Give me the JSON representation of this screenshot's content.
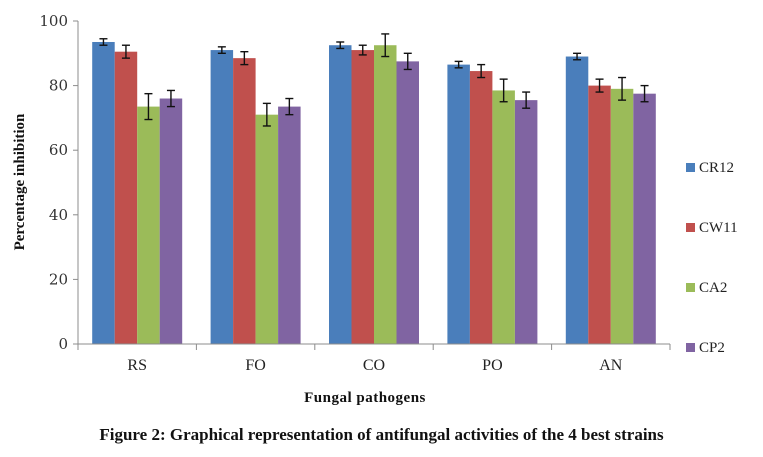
{
  "chart_data": {
    "type": "bar",
    "title": "",
    "xlabel": "Fungal pathogens",
    "ylabel": "Percentage inhibition",
    "ylim": [
      0,
      100
    ],
    "yticks": [
      0,
      20,
      40,
      60,
      80,
      100
    ],
    "grid": false,
    "legend_position": "right",
    "categories": [
      "RS",
      "FO",
      "CO",
      "PO",
      "AN"
    ],
    "series": [
      {
        "name": "CR12",
        "color": "#4a7ebb",
        "values": [
          93.5,
          91.0,
          92.5,
          86.5,
          89.0
        ],
        "errors": [
          1.0,
          1.0,
          1.0,
          1.0,
          1.0
        ]
      },
      {
        "name": "CW11",
        "color": "#c0504d",
        "values": [
          90.5,
          88.5,
          91.0,
          84.5,
          80.0
        ],
        "errors": [
          2.0,
          2.0,
          1.5,
          2.0,
          2.0
        ]
      },
      {
        "name": "CA2",
        "color": "#9bbb59",
        "values": [
          73.5,
          71.0,
          92.5,
          78.5,
          79.0
        ],
        "errors": [
          4.0,
          3.5,
          3.5,
          3.5,
          3.5
        ]
      },
      {
        "name": "CP2",
        "color": "#8064a2",
        "values": [
          76.0,
          73.5,
          87.5,
          75.5,
          77.5
        ],
        "errors": [
          2.5,
          2.5,
          2.5,
          2.5,
          2.5
        ]
      }
    ]
  },
  "caption": "Figure 2: Graphical representation of antifungal activities of the 4 best strains"
}
